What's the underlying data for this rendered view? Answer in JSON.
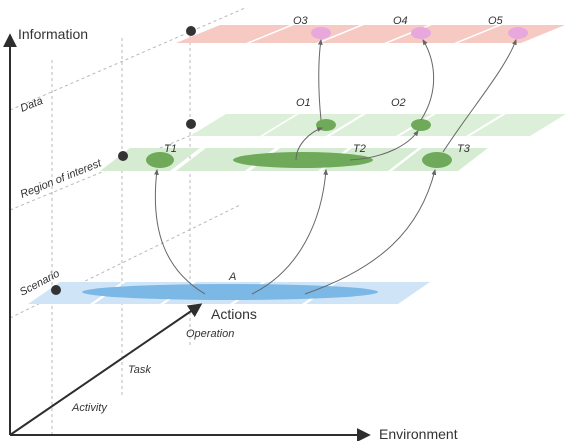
{
  "axes": {
    "vertical": "Information",
    "horizontal": "Environment",
    "diagonal": "Actions"
  },
  "levels": [
    "Data",
    "Region of interest",
    "Scenario"
  ],
  "diagonal_labels": [
    "Operation",
    "Task",
    "Activity"
  ],
  "nodes": {
    "scenario": "A",
    "roi": [
      "T1",
      "T2",
      "T3"
    ],
    "data": [
      "O1",
      "O2"
    ],
    "information": [
      "O3",
      "O4",
      "O5"
    ]
  },
  "colors": {
    "information_plane": "#f6c9c2",
    "data_plane": "#dcefd8",
    "roi_plane": "#d6ecd2",
    "scenario_plane": "#cfe4f7",
    "scenario_ellipse": "#7bb8e6",
    "roi_ellipse": "#6faa5a",
    "info_ellipse": "#e8a8dd",
    "axis": "#2e2e2e",
    "dot": "#333333"
  }
}
